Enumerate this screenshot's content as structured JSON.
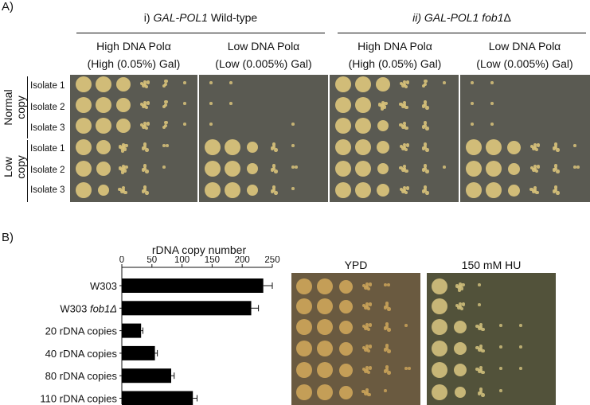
{
  "figure": {
    "panel_a_label": "A)",
    "panel_b_label": "B)"
  },
  "panel_a": {
    "group_i": {
      "prefix": "i) ",
      "title": "GAL-POL1",
      "suffix": " Wild-type"
    },
    "group_ii": {
      "prefix": "ii) ",
      "title": "GAL-POL1 fob1",
      "suffix": "Δ"
    },
    "conditions": [
      {
        "line1": "High DNA Polα",
        "line2": "(High (0.05%) Gal)"
      },
      {
        "line1": "Low DNA Polα",
        "line2": "(Low (0.005%) Gal)"
      },
      {
        "line1": "High DNA Polα",
        "line2": "(High (0.05%) Gal)"
      },
      {
        "line1": "Low DNA Polα",
        "line2": "(Low (0.005%) Gal)"
      }
    ],
    "copy_groups": [
      {
        "word1": "Normal",
        "word2": "copy"
      },
      {
        "word1": "Low",
        "word2": "copy"
      }
    ],
    "isolates": [
      "Isolate 1",
      "Isolate 2",
      "Isolate 3",
      "Isolate 1",
      "Isolate 2",
      "Isolate 3"
    ],
    "colony_color": "#d8c27a",
    "plate_color": "#5a5a52"
  },
  "panel_b": {
    "chart_data": {
      "type": "bar",
      "orientation": "horizontal",
      "title": "rDNA copy number",
      "categories": [
        "W303",
        "W303 fob1Δ",
        "20 rDNA copies",
        "40 rDNA copies",
        "80 rDNA copies",
        "110 rDNA copies"
      ],
      "category_parts": [
        {
          "plain": "W303",
          "italic": ""
        },
        {
          "plain": "W303 ",
          "italic": "fob1Δ"
        },
        {
          "plain": "20 rDNA copies",
          "italic": ""
        },
        {
          "plain": "40 rDNA copies",
          "italic": ""
        },
        {
          "plain": "80 rDNA copies",
          "italic": ""
        },
        {
          "plain": "110 rDNA copies",
          "italic": ""
        }
      ],
      "values": [
        235,
        215,
        32,
        55,
        82,
        118
      ],
      "errors": [
        15,
        12,
        3,
        4,
        5,
        7
      ],
      "xlim": [
        0,
        250
      ],
      "xticks": [
        "0",
        "50",
        "100",
        "150",
        "200",
        "250"
      ],
      "bar_color": "#000000"
    },
    "plates": [
      {
        "title": "YPD"
      },
      {
        "title": "150 mM HU"
      }
    ]
  }
}
